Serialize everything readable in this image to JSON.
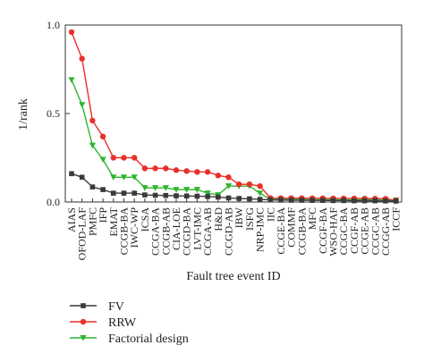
{
  "chart_data": {
    "type": "line",
    "title": "",
    "xlabel": "Fault tree event ID",
    "ylabel": "1/rank",
    "ylim": [
      0,
      1.0
    ],
    "yticks": [
      "0.0",
      "0.5",
      "1.0"
    ],
    "grid": false,
    "legend_position": "bottom-left",
    "categories": [
      "AIAS",
      "OFOD-LAF",
      "PMFC",
      "IFP",
      "EMAT",
      "CCGB-BA",
      "IWC-WP",
      "ICSA",
      "CCGA-BA",
      "CCGB-AB",
      "CIA-LOE",
      "CCGD-BA",
      "LVT-IMC",
      "CCGA-AB",
      "H&D",
      "CCGD-AB",
      "IBW",
      "ISFG",
      "NRP-IMC",
      "IIC",
      "CCGE-BA",
      "COMMF",
      "CCGB-BA",
      "MFC",
      "CCGF-BA",
      "WSO-HAF",
      "CCGC-BA",
      "CCGF-AB",
      "CCGE-AB",
      "CCGC-AB",
      "CCGG-AB",
      "ICCF"
    ],
    "series": [
      {
        "name": "FV",
        "color": "#3a3a3a",
        "marker": "square",
        "values": [
          0.16,
          0.14,
          0.085,
          0.07,
          0.05,
          0.05,
          0.05,
          0.04,
          0.038,
          0.037,
          0.035,
          0.034,
          0.033,
          0.031,
          0.028,
          0.023,
          0.02,
          0.018,
          0.015,
          0.012,
          0.011,
          0.01,
          0.01,
          0.009,
          0.009,
          0.008,
          0.008,
          0.007,
          0.007,
          0.007,
          0.006,
          0.005
        ]
      },
      {
        "name": "RRW",
        "color": "#e8302a",
        "marker": "circle",
        "values": [
          0.96,
          0.81,
          0.46,
          0.37,
          0.25,
          0.25,
          0.25,
          0.19,
          0.19,
          0.19,
          0.18,
          0.175,
          0.17,
          0.17,
          0.15,
          0.14,
          0.1,
          0.1,
          0.09,
          0.022,
          0.022,
          0.022,
          0.022,
          0.021,
          0.021,
          0.02,
          0.02,
          0.02,
          0.019,
          0.019,
          0.018,
          0.01
        ]
      },
      {
        "name": "Factorial design",
        "color": "#2fb52f",
        "marker": "triangle-down",
        "values": [
          0.69,
          0.55,
          0.32,
          0.24,
          0.14,
          0.14,
          0.14,
          0.08,
          0.08,
          0.08,
          0.07,
          0.07,
          0.07,
          0.05,
          0.04,
          0.09,
          0.09,
          0.09,
          0.05,
          0.014,
          0.014,
          0.014,
          0.014,
          0.013,
          0.013,
          0.013,
          0.012,
          0.012,
          0.012,
          0.011,
          0.011,
          0.01
        ]
      }
    ]
  }
}
